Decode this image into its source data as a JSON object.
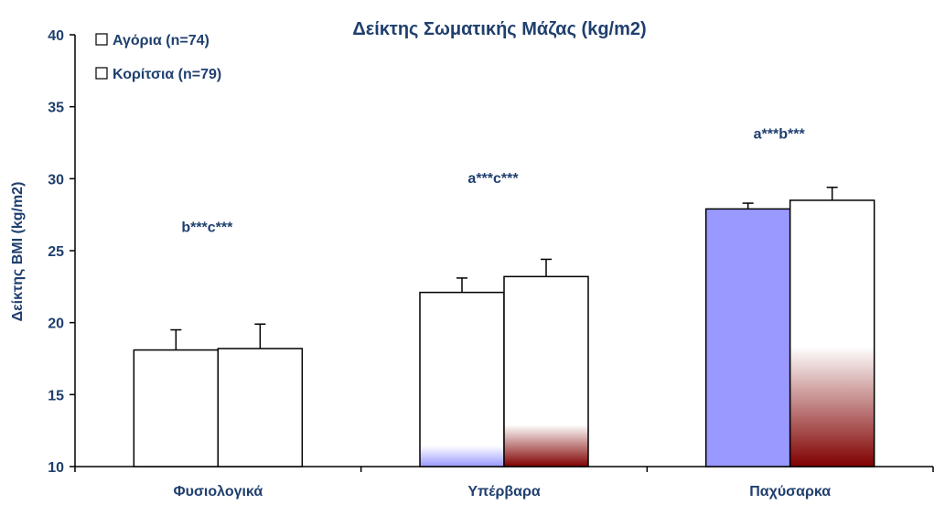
{
  "chart_data": {
    "type": "bar",
    "title": "Δείκτης Σωματικής Μάζας (kg/m2)",
    "xlabel": "",
    "ylabel": "Δείκτης BMI (kg/m2)",
    "ylim": [
      10,
      40
    ],
    "yticks": [
      10,
      15,
      20,
      25,
      30,
      35,
      40
    ],
    "grid": false,
    "legend_position": "top-left",
    "categories": [
      "Φυσιολογικά",
      "Υπέρβαρα",
      "Παχύσαρκα"
    ],
    "series": [
      {
        "name": "Αγόρια (n=74)",
        "values": [
          18.1,
          22.1,
          27.9
        ],
        "errors": [
          1.4,
          1.0,
          0.4
        ]
      },
      {
        "name": "Κορίτσια (n=79)",
        "values": [
          18.2,
          23.2,
          28.5
        ],
        "errors": [
          1.7,
          1.2,
          0.9
        ]
      }
    ],
    "annotations": [
      "b***c***",
      "a***c***",
      "a***b***"
    ],
    "annotation_values": [
      26.3,
      29.7,
      32.8
    ],
    "colors": {
      "text": "#1F3F6E",
      "axis": "#000000",
      "bar_border": "#000000",
      "bar_fill": "#FFFFFF",
      "boys_tint": "#9999FF",
      "girls_tint": "#800000"
    },
    "bar_tints": [
      {
        "boys": 0.0,
        "girls": 0.0
      },
      {
        "boys": 0.12,
        "girls": 0.22
      },
      {
        "boys": 1.0,
        "girls": 0.45
      }
    ]
  }
}
